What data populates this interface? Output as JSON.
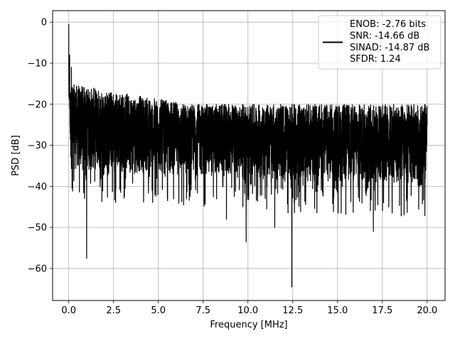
{
  "chart_data": {
    "type": "line",
    "xlabel": "Frequency [MHz]",
    "ylabel": "PSD [dB]",
    "xlim": [
      -0.9,
      21.0
    ],
    "ylim": [
      -67.8,
      2.8
    ],
    "xticks": [
      0.0,
      2.5,
      5.0,
      7.5,
      10.0,
      12.5,
      15.0,
      17.5,
      20.0
    ],
    "xtick_labels": [
      "0.0",
      "2.5",
      "5.0",
      "7.5",
      "10.0",
      "12.5",
      "15.0",
      "17.5",
      "20.0"
    ],
    "yticks": [
      0,
      -10,
      -20,
      -30,
      -40,
      -50,
      -60
    ],
    "ytick_labels": [
      "0",
      "−10",
      "−20",
      "−30",
      "−40",
      "−50",
      "−60"
    ],
    "grid": true,
    "legend_position": "top-right",
    "series": [
      {
        "name": "ENOB: -2.76 bits\nSNR: -14.66 dB\nSINAD: -14.87 dB\nSFDR: 1.24",
        "color": "#000000",
        "x_range": [
          0.0,
          20.0
        ],
        "points": 4000,
        "peaks": [
          [
            0.0,
            -0.5
          ],
          [
            0.05,
            -8
          ],
          [
            0.15,
            -11
          ]
        ],
        "noise_floor_upper_db": [
          -15,
          -20
        ],
        "noise_floor_lower_db": [
          -36,
          -40
        ],
        "notable_minima": [
          [
            1.0,
            -57.5
          ],
          [
            9.9,
            -53.5
          ],
          [
            12.45,
            -64.5
          ],
          [
            11.5,
            -50
          ],
          [
            17.0,
            -51
          ],
          [
            8.8,
            -48
          ]
        ]
      }
    ]
  }
}
